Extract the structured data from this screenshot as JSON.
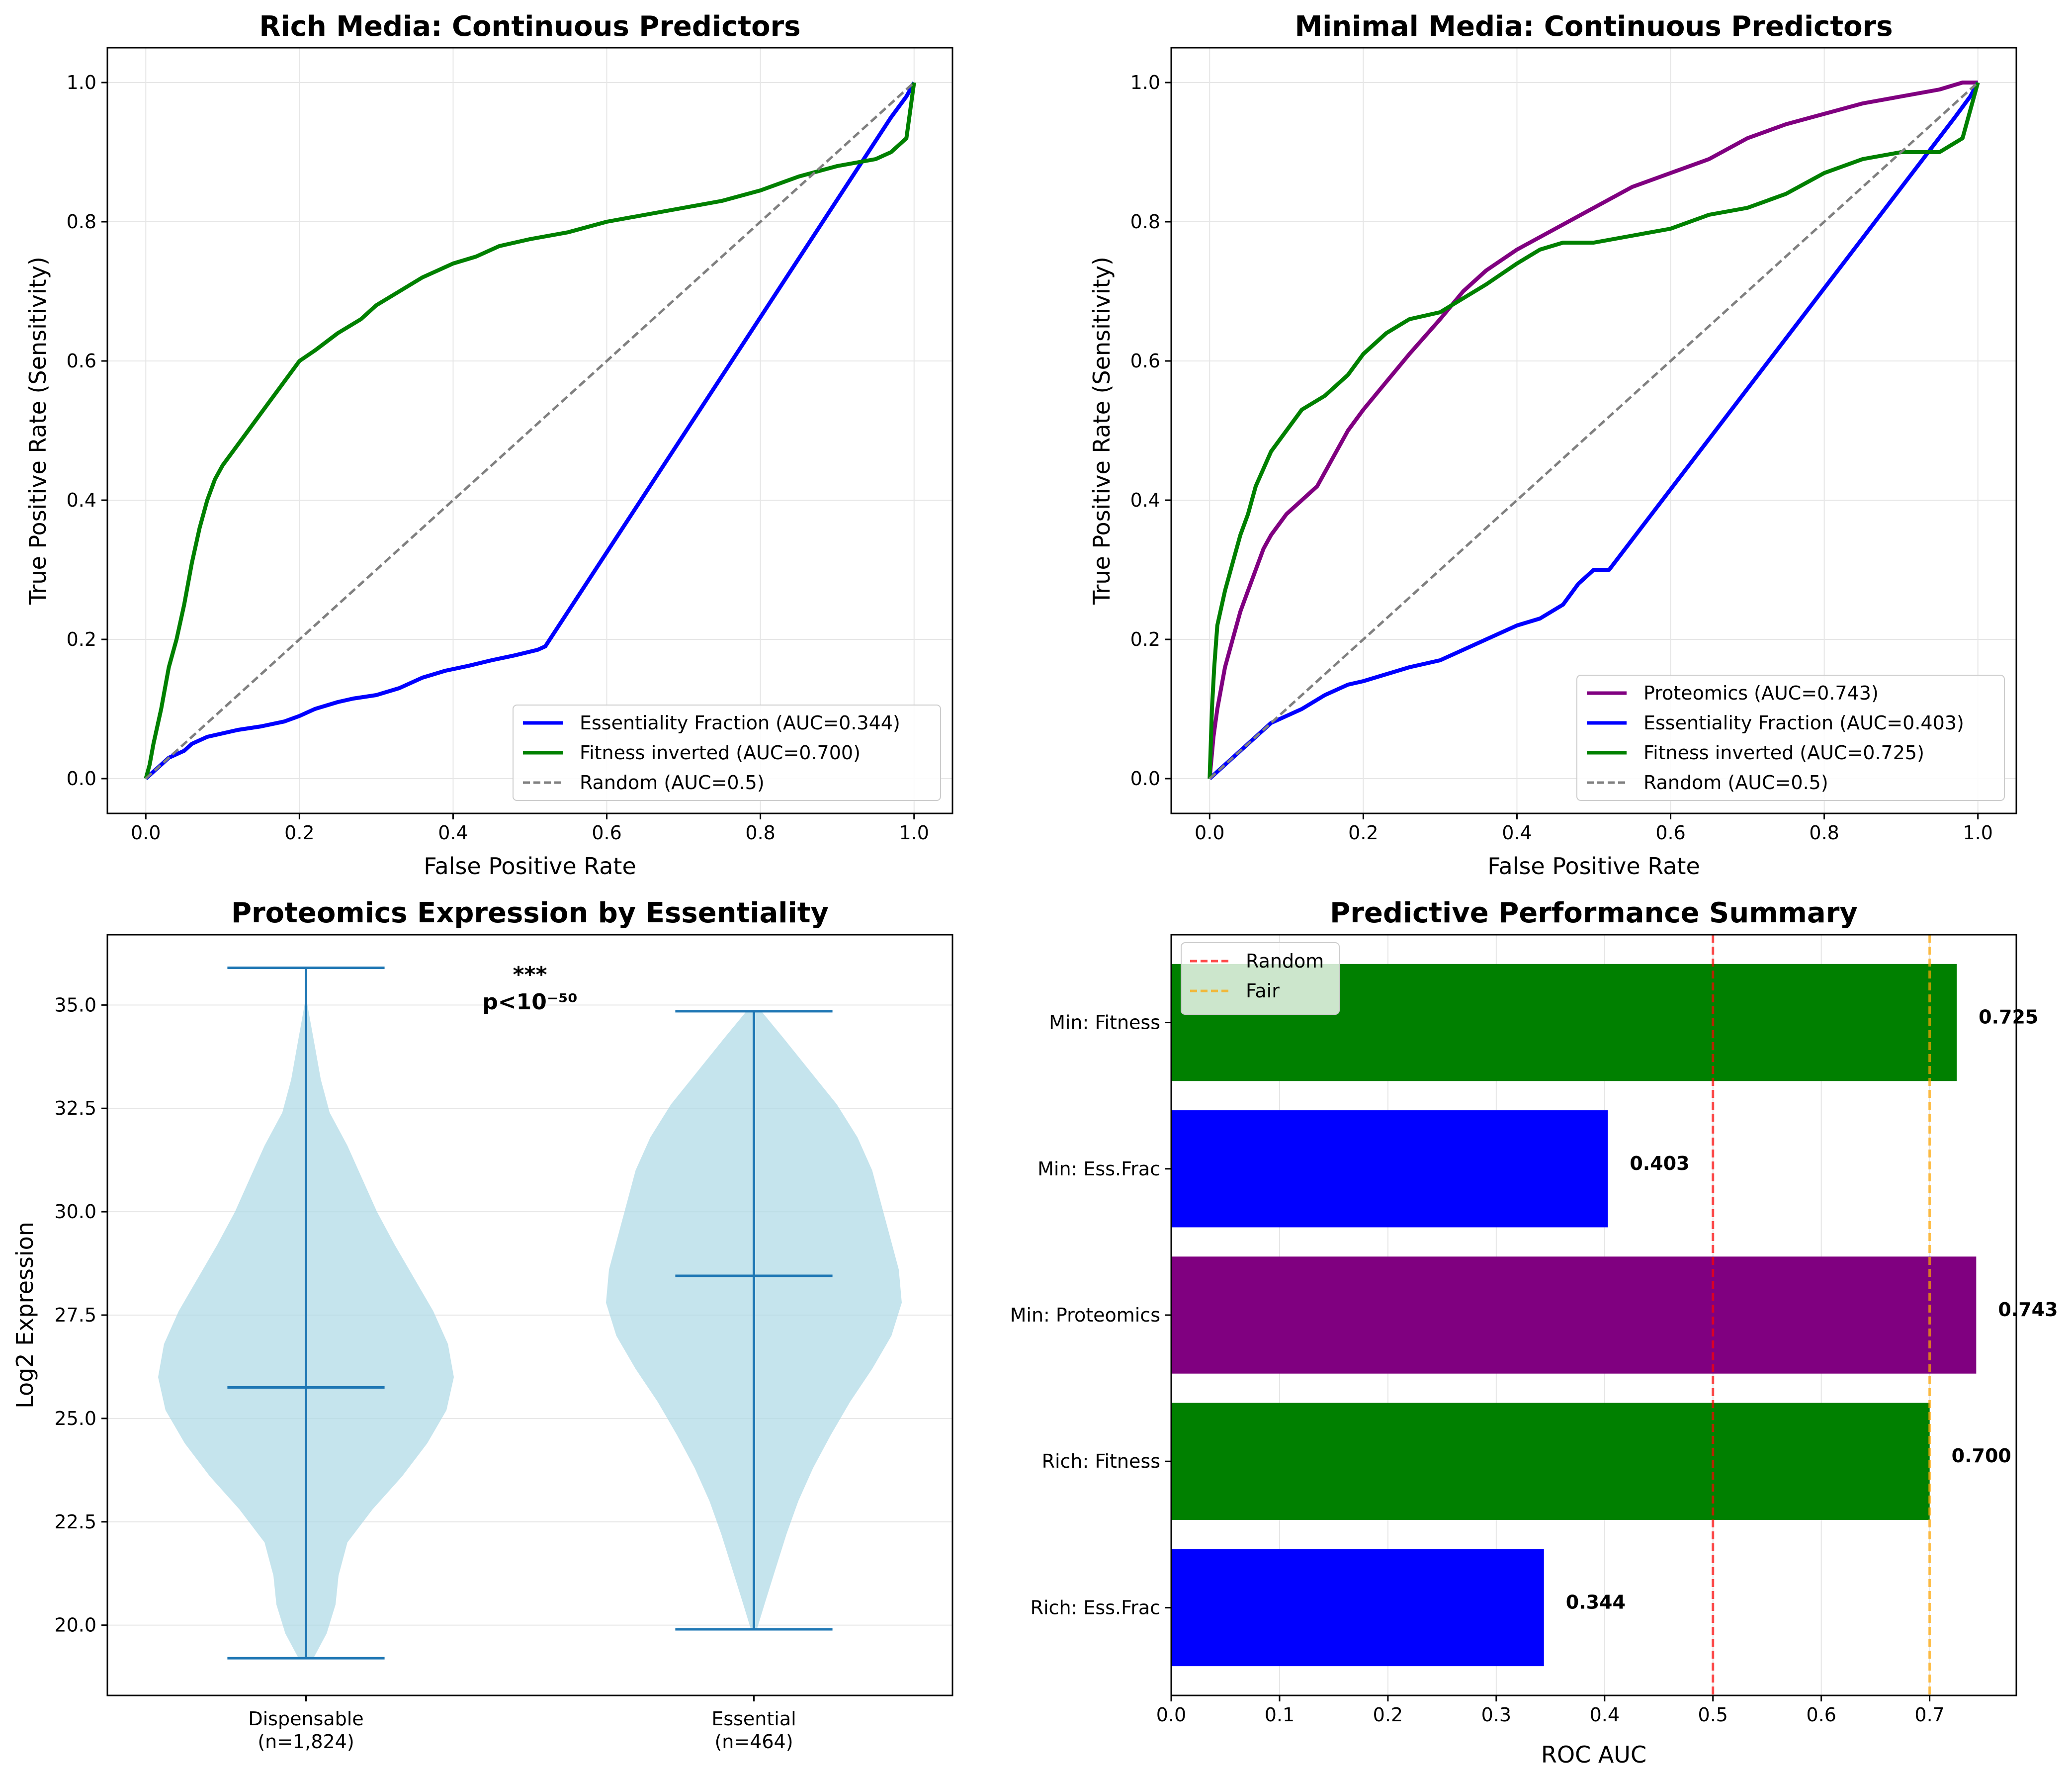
{
  "chart_data": [
    {
      "type": "line",
      "title": "Rich Media: Continuous Predictors",
      "xlabel": "False Positive Rate",
      "ylabel": "True Positive Rate (Sensitivity)",
      "xlim": [
        -0.05,
        1.05
      ],
      "ylim": [
        -0.05,
        1.05
      ],
      "xticks": [
        "0.0",
        "0.2",
        "0.4",
        "0.6",
        "0.8",
        "1.0"
      ],
      "yticks": [
        "0.0",
        "0.2",
        "0.4",
        "0.6",
        "0.8",
        "1.0"
      ],
      "grid": true,
      "legend_position": "lower right",
      "series": [
        {
          "name": "Essentiality Fraction (AUC=0.344)",
          "color": "#0000ff",
          "style": "solid",
          "x": [
            0.0,
            0.01,
            0.02,
            0.03,
            0.05,
            0.06,
            0.08,
            0.1,
            0.12,
            0.15,
            0.18,
            0.2,
            0.22,
            0.25,
            0.27,
            0.3,
            0.33,
            0.36,
            0.39,
            0.42,
            0.45,
            0.48,
            0.51,
            0.52,
            0.97,
            0.99,
            1.0
          ],
          "y": [
            0.0,
            0.01,
            0.02,
            0.03,
            0.04,
            0.05,
            0.06,
            0.065,
            0.07,
            0.075,
            0.082,
            0.09,
            0.1,
            0.11,
            0.115,
            0.12,
            0.13,
            0.145,
            0.155,
            0.162,
            0.17,
            0.177,
            0.185,
            0.19,
            0.95,
            0.98,
            1.0
          ]
        },
        {
          "name": "Fitness inverted (AUC=0.700)",
          "color": "#008000",
          "style": "solid",
          "x": [
            0.0,
            0.005,
            0.01,
            0.02,
            0.03,
            0.04,
            0.05,
            0.06,
            0.07,
            0.08,
            0.09,
            0.1,
            0.12,
            0.14,
            0.16,
            0.18,
            0.2,
            0.22,
            0.25,
            0.28,
            0.3,
            0.33,
            0.36,
            0.4,
            0.43,
            0.46,
            0.5,
            0.55,
            0.6,
            0.65,
            0.7,
            0.75,
            0.8,
            0.85,
            0.9,
            0.95,
            0.97,
            0.99,
            1.0
          ],
          "y": [
            0.0,
            0.02,
            0.05,
            0.1,
            0.16,
            0.2,
            0.25,
            0.31,
            0.36,
            0.4,
            0.43,
            0.45,
            0.48,
            0.51,
            0.54,
            0.57,
            0.6,
            0.615,
            0.64,
            0.66,
            0.68,
            0.7,
            0.72,
            0.74,
            0.75,
            0.765,
            0.775,
            0.785,
            0.8,
            0.81,
            0.82,
            0.83,
            0.845,
            0.865,
            0.88,
            0.89,
            0.9,
            0.92,
            1.0
          ]
        },
        {
          "name": "Random (AUC=0.5)",
          "color": "#808080",
          "style": "dashed",
          "x": [
            0.0,
            1.0
          ],
          "y": [
            0.0,
            1.0
          ]
        }
      ]
    },
    {
      "type": "line",
      "title": "Minimal Media: Continuous Predictors",
      "xlabel": "False Positive Rate",
      "ylabel": "True Positive Rate (Sensitivity)",
      "xlim": [
        -0.05,
        1.05
      ],
      "ylim": [
        -0.05,
        1.05
      ],
      "xticks": [
        "0.0",
        "0.2",
        "0.4",
        "0.6",
        "0.8",
        "1.0"
      ],
      "yticks": [
        "0.0",
        "0.2",
        "0.4",
        "0.6",
        "0.8",
        "1.0"
      ],
      "grid": true,
      "legend_position": "lower right",
      "series": [
        {
          "name": "Proteomics (AUC=0.743)",
          "color": "#800080",
          "style": "solid",
          "x": [
            0.0,
            0.005,
            0.01,
            0.02,
            0.03,
            0.04,
            0.05,
            0.06,
            0.07,
            0.08,
            0.1,
            0.12,
            0.14,
            0.16,
            0.18,
            0.2,
            0.23,
            0.26,
            0.3,
            0.33,
            0.36,
            0.4,
            0.45,
            0.5,
            0.55,
            0.6,
            0.65,
            0.7,
            0.75,
            0.8,
            0.85,
            0.9,
            0.95,
            0.98,
            1.0
          ],
          "y": [
            0.0,
            0.06,
            0.1,
            0.16,
            0.2,
            0.24,
            0.27,
            0.3,
            0.33,
            0.35,
            0.38,
            0.4,
            0.42,
            0.46,
            0.5,
            0.53,
            0.57,
            0.61,
            0.66,
            0.7,
            0.73,
            0.76,
            0.79,
            0.82,
            0.85,
            0.87,
            0.89,
            0.92,
            0.94,
            0.955,
            0.97,
            0.98,
            0.99,
            1.0,
            1.0
          ]
        },
        {
          "name": "Essentiality Fraction (AUC=0.403)",
          "color": "#0000ff",
          "style": "solid",
          "x": [
            0.0,
            0.02,
            0.04,
            0.06,
            0.08,
            0.1,
            0.12,
            0.15,
            0.18,
            0.2,
            0.23,
            0.26,
            0.3,
            0.33,
            0.36,
            0.4,
            0.43,
            0.46,
            0.48,
            0.5,
            0.52,
            0.97,
            0.99,
            1.0
          ],
          "y": [
            0.0,
            0.02,
            0.04,
            0.06,
            0.08,
            0.09,
            0.1,
            0.12,
            0.135,
            0.14,
            0.15,
            0.16,
            0.17,
            0.185,
            0.2,
            0.22,
            0.23,
            0.25,
            0.28,
            0.3,
            0.3,
            0.95,
            0.98,
            1.0
          ]
        },
        {
          "name": "Fitness inverted (AUC=0.725)",
          "color": "#008000",
          "style": "solid",
          "x": [
            0.0,
            0.003,
            0.006,
            0.01,
            0.02,
            0.03,
            0.04,
            0.05,
            0.06,
            0.08,
            0.1,
            0.12,
            0.15,
            0.18,
            0.2,
            0.23,
            0.26,
            0.3,
            0.33,
            0.36,
            0.4,
            0.43,
            0.46,
            0.5,
            0.55,
            0.6,
            0.65,
            0.7,
            0.75,
            0.8,
            0.85,
            0.9,
            0.95,
            0.98,
            1.0
          ],
          "y": [
            0.0,
            0.1,
            0.16,
            0.22,
            0.27,
            0.31,
            0.35,
            0.38,
            0.42,
            0.47,
            0.5,
            0.53,
            0.55,
            0.58,
            0.61,
            0.64,
            0.66,
            0.67,
            0.69,
            0.71,
            0.74,
            0.76,
            0.77,
            0.77,
            0.78,
            0.79,
            0.81,
            0.82,
            0.84,
            0.87,
            0.89,
            0.9,
            0.9,
            0.92,
            1.0
          ]
        },
        {
          "name": "Random (AUC=0.5)",
          "color": "#808080",
          "style": "dashed",
          "x": [
            0.0,
            1.0
          ],
          "y": [
            0.0,
            1.0
          ]
        }
      ]
    },
    {
      "type": "violin",
      "title": "Proteomics Expression by Essentiality",
      "ylabel": "Log2 Expression",
      "ylim": [
        18.3,
        36.7
      ],
      "yticks": [
        "20.0",
        "22.5",
        "25.0",
        "27.5",
        "30.0",
        "32.5",
        "35.0"
      ],
      "grid": true,
      "categories": [
        "Dispensable\n(n=1,824)",
        "Essential\n(n=464)"
      ],
      "annotation": {
        "stars": "***",
        "pvalue": "p<10⁻⁵⁰"
      },
      "groups": [
        {
          "name": "Dispensable",
          "n": 1824,
          "min": 19.2,
          "max": 35.9,
          "median": 25.75,
          "density_y": [
            19.2,
            19.8,
            20.5,
            21.2,
            22.0,
            22.8,
            23.6,
            24.4,
            25.2,
            26.0,
            26.8,
            27.6,
            28.4,
            29.2,
            30.0,
            30.8,
            31.6,
            32.4,
            33.2,
            34.0,
            34.6,
            35.2
          ],
          "density_w": [
            0.05,
            0.14,
            0.2,
            0.22,
            0.28,
            0.45,
            0.65,
            0.82,
            0.95,
            1.0,
            0.96,
            0.86,
            0.73,
            0.6,
            0.48,
            0.38,
            0.28,
            0.16,
            0.1,
            0.06,
            0.03,
            0.0
          ]
        },
        {
          "name": "Essential",
          "n": 464,
          "min": 19.9,
          "max": 34.85,
          "median": 28.45,
          "density_y": [
            19.9,
            20.6,
            21.4,
            22.2,
            23.0,
            23.8,
            24.6,
            25.4,
            26.2,
            27.0,
            27.8,
            28.6,
            29.4,
            30.2,
            31.0,
            31.8,
            32.6,
            33.4,
            34.2,
            34.85
          ],
          "density_w": [
            0.02,
            0.08,
            0.15,
            0.22,
            0.3,
            0.4,
            0.52,
            0.65,
            0.8,
            0.93,
            1.0,
            0.98,
            0.92,
            0.86,
            0.8,
            0.7,
            0.56,
            0.38,
            0.2,
            0.05
          ]
        }
      ]
    },
    {
      "type": "bar",
      "orientation": "horizontal",
      "title": "Predictive Performance Summary",
      "xlabel": "ROC AUC",
      "xlim": [
        0.0,
        0.78
      ],
      "xticks": [
        "0.0",
        "0.1",
        "0.2",
        "0.3",
        "0.4",
        "0.5",
        "0.6",
        "0.7"
      ],
      "grid": true,
      "legend_position": "upper left",
      "categories": [
        "Rich: Ess.Frac",
        "Rich: Fitness",
        "Min: Proteomics",
        "Min: Ess.Frac",
        "Min: Fitness"
      ],
      "values": [
        0.344,
        0.7,
        0.743,
        0.403,
        0.725
      ],
      "value_labels": [
        "0.344",
        "0.700",
        "0.743",
        "0.403",
        "0.725"
      ],
      "colors": [
        "#0000ff",
        "#008000",
        "#800080",
        "#0000ff",
        "#008000"
      ],
      "reference_lines": [
        {
          "name": "Random",
          "value": 0.5,
          "color": "#ff0000"
        },
        {
          "name": "Fair",
          "value": 0.7,
          "color": "#ffa500"
        }
      ]
    }
  ]
}
